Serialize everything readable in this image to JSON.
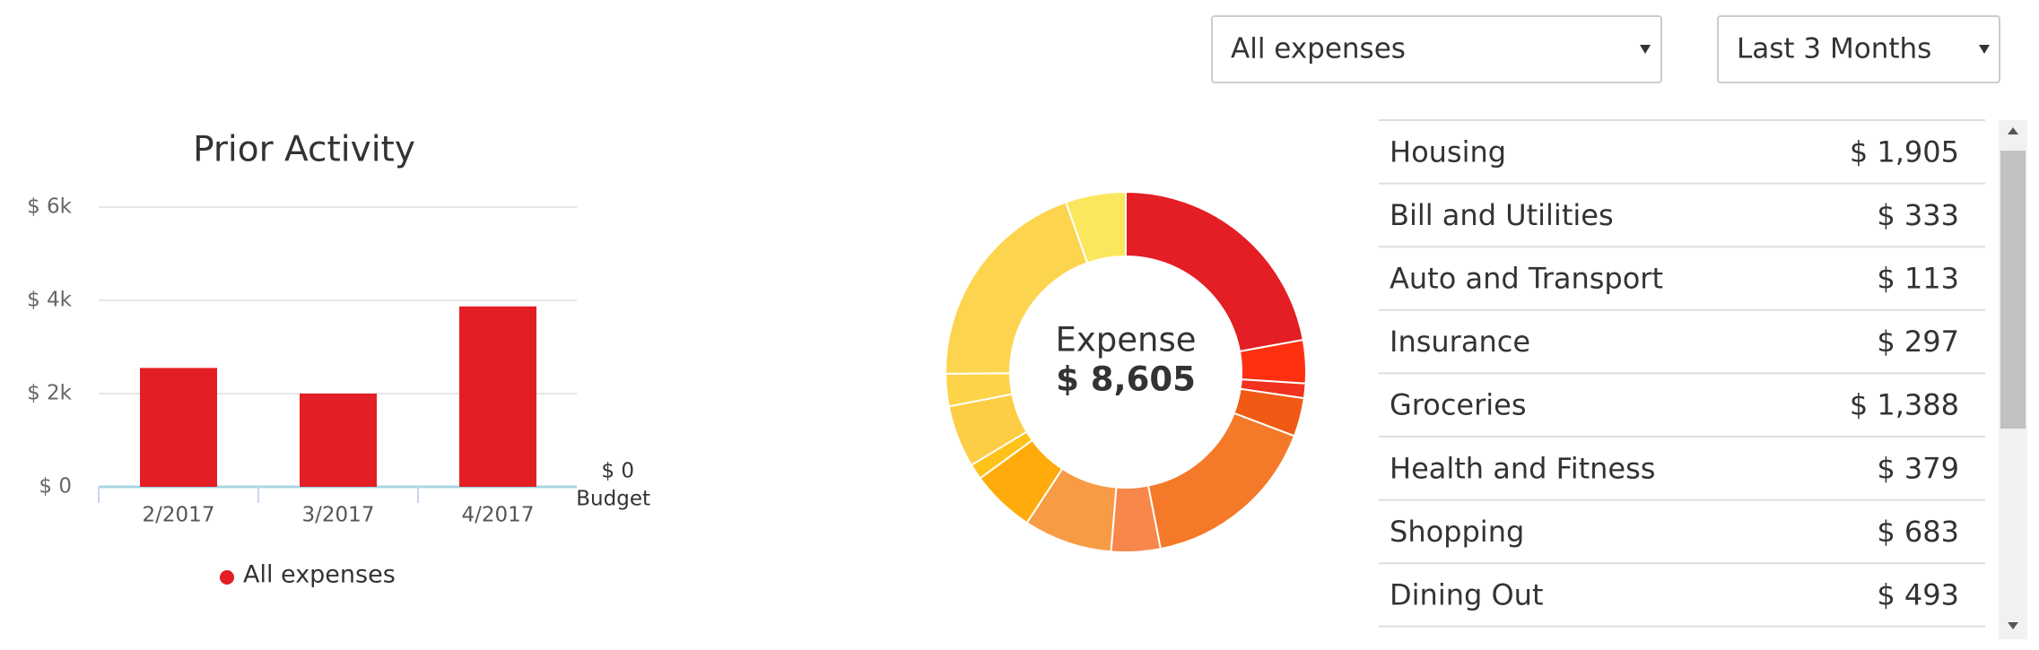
{
  "filters": [
    "All expenses",
    "Last 3 Months"
  ],
  "chart_data": [
    {
      "type": "bar",
      "title": "Prior Activity",
      "categories": [
        "2/2017",
        "3/2017",
        "4/2017"
      ],
      "series": [
        {
          "name": "All expenses",
          "color": "#e31e24",
          "values": [
            2550,
            2000,
            3870
          ]
        }
      ],
      "ylim": [
        0,
        6000
      ],
      "yticks": [
        {
          "value": 0,
          "label": "$ 0"
        },
        {
          "value": 2000,
          "label": "$ 2k"
        },
        {
          "value": 4000,
          "label": "$ 4k"
        },
        {
          "value": 6000,
          "label": "$ 6k"
        }
      ],
      "grid": true,
      "annotations": [
        "$ 0",
        "Budget"
      ]
    },
    {
      "type": "pie",
      "donut": true,
      "center_label": "Expense",
      "total_label": "$ 8,605",
      "values": [
        1905,
        333,
        113,
        297,
        1388,
        379,
        683,
        493,
        120,
        480,
        250,
        1700,
        464
      ],
      "colors": [
        "#e31e24",
        "#ff3010",
        "#f0321e",
        "#f05a14",
        "#f47a2a",
        "#f7874a",
        "#f89b45",
        "#ffab0b",
        "#ffc21a",
        "#fccd45",
        "#fdd34a",
        "#fdd44e",
        "#fbe75e"
      ]
    }
  ],
  "table": {
    "rows": [
      [
        "Housing",
        "$ 1,905"
      ],
      [
        "Bill and Utilities",
        "$ 333"
      ],
      [
        "Auto and Transport",
        "$ 113"
      ],
      [
        "Insurance",
        "$ 297"
      ],
      [
        "Groceries",
        "$ 1,388"
      ],
      [
        "Health and Fitness",
        "$ 379"
      ],
      [
        "Shopping",
        "$ 683"
      ],
      [
        "Dining Out",
        "$ 493"
      ]
    ]
  }
}
